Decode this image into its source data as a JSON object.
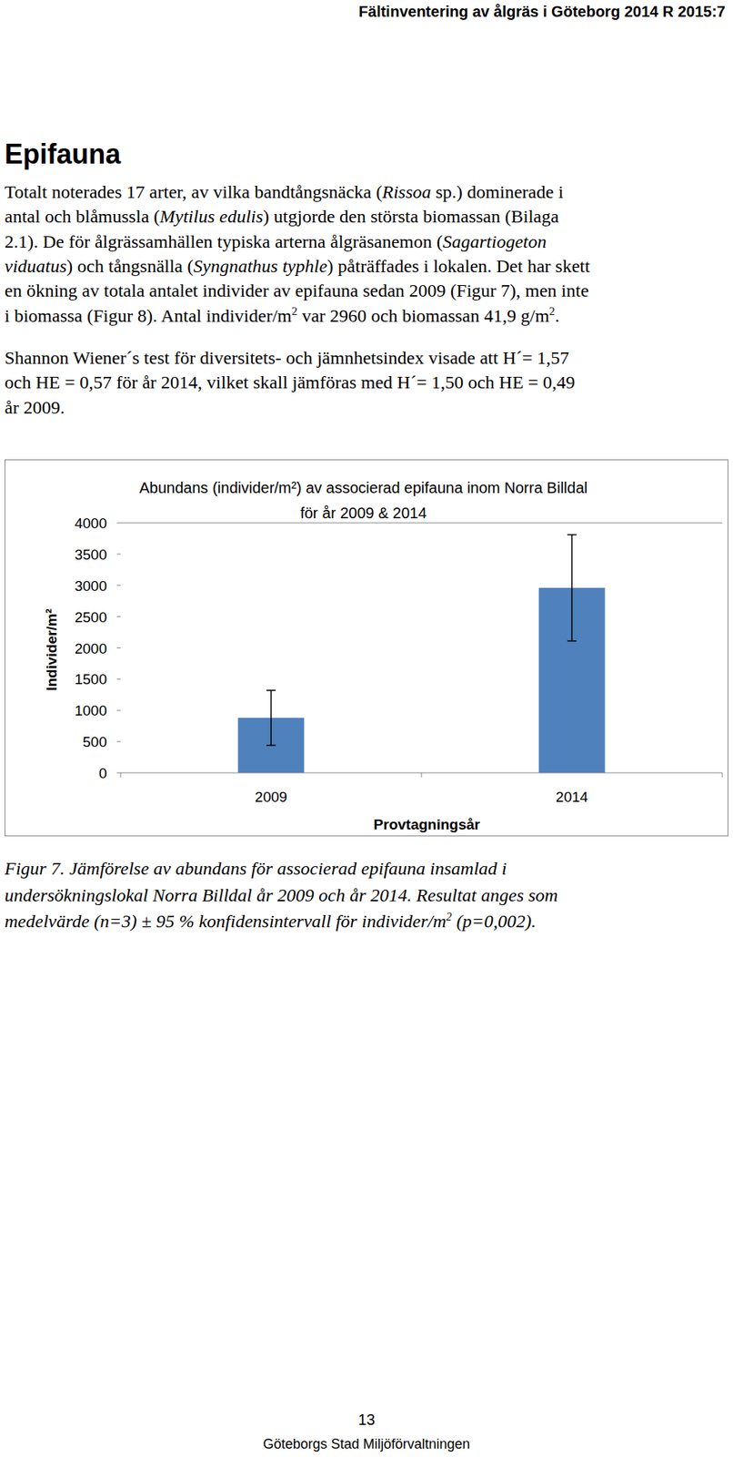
{
  "header": {
    "title": "Fältinventering av ålgräs i Göteborg 2014 R 2015:7"
  },
  "heading": "Epifauna",
  "paragraphs": [
    [
      [
        {
          "text": "Totalt noterades 17 arter, av vilka bandtångsnäcka ("
        },
        {
          "text": "Rissoa",
          "style": "italic"
        },
        {
          "text": " sp.) dominerade i"
        }
      ],
      [
        {
          "text": "antal och blåmussla ("
        },
        {
          "text": "Mytilus edulis",
          "style": "italic"
        },
        {
          "text": ") utgjorde den största biomassan (Bilaga"
        }
      ],
      [
        {
          "text": "2.1). De för ålgrässamhällen typiska arterna ålgräsanemon ("
        },
        {
          "text": "Sagartiogeton",
          "style": "italic"
        }
      ],
      [
        {
          "text": "viduatus",
          "style": "italic"
        },
        {
          "text": ") och tångsnälla ("
        },
        {
          "text": "Syngnathus typhle",
          "style": "italic"
        },
        {
          "text": ") påträffades i lokalen. Det har skett"
        }
      ],
      [
        {
          "text": "en ökning av totala antalet individer av epifauna sedan 2009 (Figur 7), men inte"
        }
      ],
      [
        {
          "text": "i biomassa (Figur 8). Antal individer/m"
        },
        {
          "text": "2",
          "style": "sup"
        },
        {
          "text": " var 2960 och biomassan 41,9 g/m"
        },
        {
          "text": "2",
          "style": "sup"
        },
        {
          "text": "."
        }
      ]
    ],
    [
      [
        {
          "text": "Shannon Wiener´s test för diversitets- och jämnhetsindex visade att H´= 1,57"
        }
      ],
      [
        {
          "text": "och HE = 0,57 för år 2014, vilket skall jämföras med H´= 1,50 och HE = 0,49"
        }
      ],
      [
        {
          "text": "år 2009."
        }
      ]
    ]
  ],
  "chart_data": {
    "type": "bar",
    "title": [
      "Abundans (individer/m²) av associerad epifauna inom Norra Billdal",
      "för år 2009 & 2014"
    ],
    "x_label": "Provtagningsår",
    "y_label": "Individer/m²",
    "categories": [
      "2009",
      "2014"
    ],
    "values": [
      880,
      2960
    ],
    "errors": [
      440,
      850
    ],
    "color": "#4f81bd",
    "ylim": [
      0,
      4000
    ],
    "yticks": [
      0,
      500,
      1000,
      1500,
      2000,
      2500,
      3000,
      3500,
      4000
    ],
    "grid": false
  },
  "caption": [
    [
      {
        "text": "Figur 7. Jämförelse av abundans för associerad epifauna insamlad i"
      }
    ],
    [
      {
        "text": "undersökningslokal Norra Billdal år 2009 och år 2014. Resultat anges som"
      }
    ],
    [
      {
        "text": "medelvärde (n=3) ± 95 % konfidensintervall för individer/m"
      },
      {
        "text": "2",
        "style": "sup"
      },
      {
        "text": " (p=0,002)."
      }
    ]
  ],
  "footer": {
    "page": 13,
    "org": "Göteborgs Stad Miljöförvaltningen"
  }
}
